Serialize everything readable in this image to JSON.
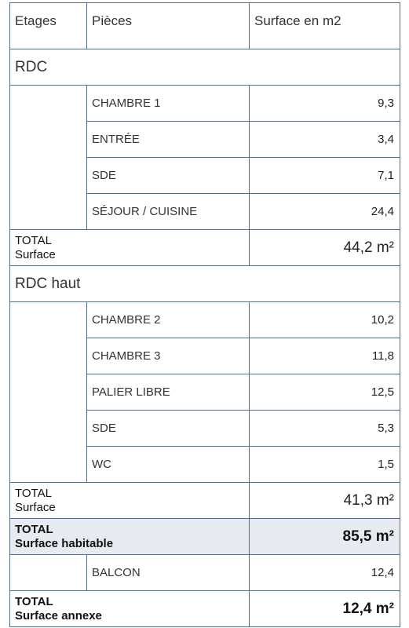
{
  "headers": {
    "etages": "Etages",
    "pieces": "Pièces",
    "surface": "Surface en m2"
  },
  "rdc": {
    "title": "RDC",
    "rooms": [
      {
        "name": "CHAMBRE 1",
        "area": "9,3"
      },
      {
        "name": "ENTRÉE",
        "area": "3,4"
      },
      {
        "name": "SDE",
        "area": "7,1"
      },
      {
        "name": "SÉJOUR / CUISINE",
        "area": "24,4"
      }
    ],
    "total_line1": "TOTAL",
    "total_line2": "Surface",
    "total_value": "44,2 m²"
  },
  "rdc_haut": {
    "title": "RDC haut",
    "rooms": [
      {
        "name": "CHAMBRE 2",
        "area": "10,2"
      },
      {
        "name": "CHAMBRE 3",
        "area": "11,8"
      },
      {
        "name": "PALIER LIBRE",
        "area": "12,5"
      },
      {
        "name": "SDE",
        "area": "5,3"
      },
      {
        "name": "WC",
        "area": "1,5"
      }
    ],
    "total_line1": "TOTAL",
    "total_line2": "Surface",
    "total_value": "41,3 m²"
  },
  "habitable": {
    "line1": "TOTAL",
    "line2": "Surface habitable",
    "value": "85,5 m²"
  },
  "annexe_rooms": [
    {
      "name": "BALCON",
      "area": "12,4"
    }
  ],
  "annexe": {
    "line1": "TOTAL",
    "line2": "Surface annexe",
    "value": "12,4 m²"
  },
  "colors": {
    "border": "#5a6b86",
    "highlight": "#e6eaf1"
  }
}
